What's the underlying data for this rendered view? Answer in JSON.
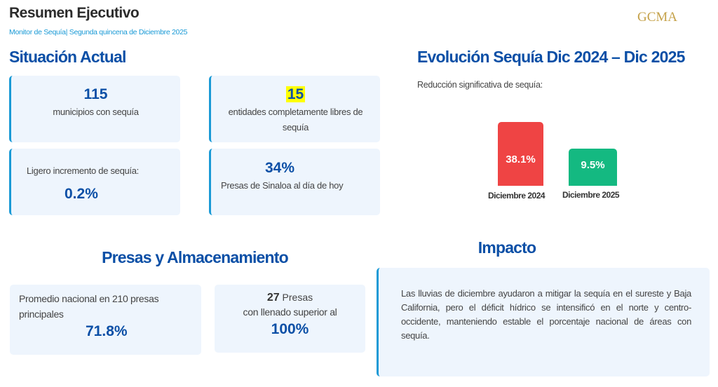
{
  "header": {
    "title": "Resumen Ejecutivo",
    "subtitle": "Monitor de Sequía| Segunda quincena de Diciembre 2025",
    "logo": "GCMA"
  },
  "situacion": {
    "title": "Situación Actual",
    "cards": [
      {
        "value": "115",
        "text": "municipios con sequía"
      },
      {
        "value": "15",
        "text": "entidades completamente libres de sequía",
        "highlight_color": "#ffff00"
      },
      {
        "text": "Ligero incremento de sequía:",
        "value": "0.2%"
      },
      {
        "value": "34%",
        "text": "Presas de Sinaloa al día de hoy"
      }
    ]
  },
  "evolucion": {
    "title": "Evolución Sequía Dic 2024 – Dic 2025",
    "subtitle": "Reducción significativa de sequía:"
  },
  "chart_data": {
    "type": "bar",
    "categories": [
      "Diciembre 2024",
      "Diciembre 2025"
    ],
    "values": [
      38.1,
      9.5
    ],
    "value_labels": [
      "38.1%",
      "9.5%"
    ],
    "colors": [
      "#ef4444",
      "#14b981"
    ],
    "grid": false
  },
  "presas": {
    "title": "Presas y Almacenamiento",
    "card1": {
      "text": "Promedio nacional en 210 presas principales",
      "value": "71.8%"
    },
    "card2": {
      "count": "27",
      "count_label": "Presas",
      "text": "con llenado superior al",
      "value": "100%"
    }
  },
  "impacto": {
    "title": "Impacto",
    "text": "Las lluvias de diciembre ayudaron a mitigar la sequía en el sureste y Baja California, pero el déficit hídrico se intensificó en el norte y centro-occidente, manteniendo estable el porcentaje nacional de áreas con sequía."
  },
  "colors": {
    "accent": "#0b4fa6",
    "border": "#1a9ad6",
    "card_bg": "#eef5fd"
  }
}
